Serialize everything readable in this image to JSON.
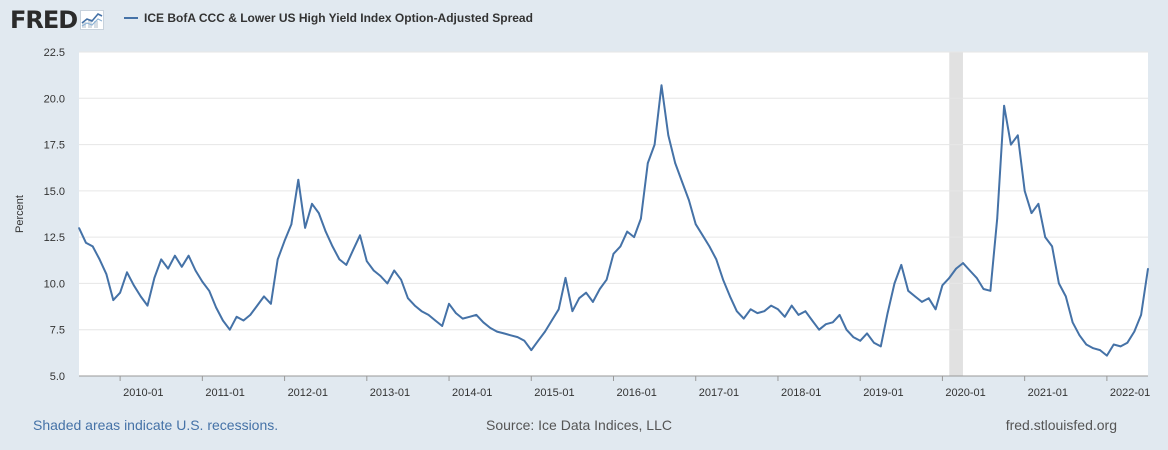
{
  "header": {
    "logo_text": "FRED",
    "legend_label": "ICE BofA CCC & Lower US High Yield Index Option-Adjusted Spread",
    "series_color": "#4572a7"
  },
  "footer": {
    "recession_note": "Shaded areas indicate U.S. recessions.",
    "source": "Source: Ice Data Indices, LLC",
    "site": "fred.stlouisfed.org"
  },
  "chart_data": {
    "type": "line",
    "title": "",
    "xlabel": "",
    "ylabel": "Percent",
    "ylim": [
      5.0,
      22.5
    ],
    "yticks": [
      "5.0",
      "7.5",
      "10.0",
      "12.5",
      "15.0",
      "17.5",
      "20.0",
      "22.5"
    ],
    "xlim": [
      "2009-07",
      "2022-07"
    ],
    "xticks": [
      "2010-01",
      "2011-01",
      "2012-01",
      "2013-01",
      "2014-01",
      "2015-01",
      "2016-01",
      "2017-01",
      "2018-01",
      "2019-01",
      "2020-01",
      "2021-01",
      "2022-01"
    ],
    "grid": true,
    "recessions": [
      {
        "start": "2020-02",
        "end": "2020-04"
      }
    ],
    "series": [
      {
        "name": "ICE BofA CCC & Lower US High Yield Index Option-Adjusted Spread",
        "color": "#4572a7",
        "points": [
          [
            "2009-07",
            13.0
          ],
          [
            "2009-08",
            12.2
          ],
          [
            "2009-09",
            12.0
          ],
          [
            "2009-10",
            11.3
          ],
          [
            "2009-11",
            10.5
          ],
          [
            "2009-12",
            9.1
          ],
          [
            "2010-01",
            9.5
          ],
          [
            "2010-02",
            10.6
          ],
          [
            "2010-03",
            9.9
          ],
          [
            "2010-04",
            9.3
          ],
          [
            "2010-05",
            8.8
          ],
          [
            "2010-06",
            10.3
          ],
          [
            "2010-07",
            11.3
          ],
          [
            "2010-08",
            10.8
          ],
          [
            "2010-09",
            11.5
          ],
          [
            "2010-10",
            10.9
          ],
          [
            "2010-11",
            11.5
          ],
          [
            "2010-12",
            10.7
          ],
          [
            "2011-01",
            10.1
          ],
          [
            "2011-02",
            9.6
          ],
          [
            "2011-03",
            8.7
          ],
          [
            "2011-04",
            8.0
          ],
          [
            "2011-05",
            7.5
          ],
          [
            "2011-06",
            8.2
          ],
          [
            "2011-07",
            8.0
          ],
          [
            "2011-08",
            8.3
          ],
          [
            "2011-09",
            8.8
          ],
          [
            "2011-10",
            9.3
          ],
          [
            "2011-11",
            8.9
          ],
          [
            "2011-12",
            11.3
          ],
          [
            "2012-01",
            12.3
          ],
          [
            "2012-02",
            13.2
          ],
          [
            "2012-03",
            15.6
          ],
          [
            "2012-04",
            13.0
          ],
          [
            "2012-05",
            14.3
          ],
          [
            "2012-06",
            13.8
          ],
          [
            "2012-07",
            12.8
          ],
          [
            "2012-08",
            12.0
          ],
          [
            "2012-09",
            11.3
          ],
          [
            "2012-10",
            11.0
          ],
          [
            "2012-11",
            11.8
          ],
          [
            "2012-12",
            12.6
          ],
          [
            "2013-01",
            11.2
          ],
          [
            "2013-02",
            10.7
          ],
          [
            "2013-03",
            10.4
          ],
          [
            "2013-04",
            10.0
          ],
          [
            "2013-05",
            10.7
          ],
          [
            "2013-06",
            10.2
          ],
          [
            "2013-07",
            9.2
          ],
          [
            "2013-08",
            8.8
          ],
          [
            "2013-09",
            8.5
          ],
          [
            "2013-10",
            8.3
          ],
          [
            "2013-11",
            8.0
          ],
          [
            "2013-12",
            7.7
          ],
          [
            "2014-01",
            8.9
          ],
          [
            "2014-02",
            8.4
          ],
          [
            "2014-03",
            8.1
          ],
          [
            "2014-04",
            8.2
          ],
          [
            "2014-05",
            8.3
          ],
          [
            "2014-06",
            7.9
          ],
          [
            "2014-07",
            7.6
          ],
          [
            "2014-08",
            7.4
          ],
          [
            "2014-09",
            7.3
          ],
          [
            "2014-10",
            7.2
          ],
          [
            "2014-11",
            7.1
          ],
          [
            "2014-12",
            6.9
          ],
          [
            "2015-01",
            6.4
          ],
          [
            "2015-02",
            6.9
          ],
          [
            "2015-03",
            7.4
          ],
          [
            "2015-04",
            8.0
          ],
          [
            "2015-05",
            8.6
          ],
          [
            "2015-06",
            10.3
          ],
          [
            "2015-07",
            8.5
          ],
          [
            "2015-08",
            9.2
          ],
          [
            "2015-09",
            9.5
          ],
          [
            "2015-10",
            9.0
          ],
          [
            "2015-11",
            9.7
          ],
          [
            "2015-12",
            10.2
          ],
          [
            "2016-01",
            11.6
          ],
          [
            "2016-02",
            12.0
          ],
          [
            "2016-03",
            12.8
          ],
          [
            "2016-04",
            12.5
          ],
          [
            "2016-05",
            13.5
          ],
          [
            "2016-06",
            16.5
          ],
          [
            "2016-07",
            17.5
          ],
          [
            "2016-08",
            20.7
          ],
          [
            "2016-09",
            18.0
          ],
          [
            "2016-10",
            16.5
          ],
          [
            "2016-11",
            15.5
          ],
          [
            "2016-12",
            14.5
          ],
          [
            "2017-01",
            13.2
          ],
          [
            "2017-02",
            12.6
          ],
          [
            "2017-03",
            12.0
          ],
          [
            "2017-04",
            11.3
          ],
          [
            "2017-05",
            10.2
          ],
          [
            "2017-06",
            9.3
          ],
          [
            "2017-07",
            8.5
          ],
          [
            "2017-08",
            8.1
          ],
          [
            "2017-09",
            8.6
          ],
          [
            "2017-10",
            8.4
          ],
          [
            "2017-11",
            8.5
          ],
          [
            "2017-12",
            8.8
          ],
          [
            "2018-01",
            8.6
          ],
          [
            "2018-02",
            8.2
          ],
          [
            "2018-03",
            8.8
          ],
          [
            "2018-04",
            8.3
          ],
          [
            "2018-05",
            8.5
          ],
          [
            "2018-06",
            8.0
          ],
          [
            "2018-07",
            7.5
          ],
          [
            "2018-08",
            7.8
          ],
          [
            "2018-09",
            7.9
          ],
          [
            "2018-10",
            8.3
          ],
          [
            "2018-11",
            7.5
          ],
          [
            "2018-12",
            7.1
          ],
          [
            "2019-01",
            6.9
          ],
          [
            "2019-02",
            7.3
          ],
          [
            "2019-03",
            6.8
          ],
          [
            "2019-04",
            6.6
          ],
          [
            "2019-05",
            8.4
          ],
          [
            "2019-06",
            10.0
          ],
          [
            "2019-07",
            11.0
          ],
          [
            "2019-08",
            9.6
          ],
          [
            "2019-09",
            9.3
          ],
          [
            "2019-10",
            9.0
          ],
          [
            "2019-11",
            9.2
          ],
          [
            "2019-12",
            8.6
          ],
          [
            "2020-01",
            9.9
          ],
          [
            "2020-02",
            10.3
          ],
          [
            "2020-03",
            10.8
          ],
          [
            "2020-04",
            11.1
          ],
          [
            "2020-05",
            10.7
          ],
          [
            "2020-06",
            10.3
          ],
          [
            "2020-07",
            9.7
          ],
          [
            "2020-08",
            9.6
          ],
          [
            "2020-09",
            13.5
          ],
          [
            "2020-10",
            19.6
          ],
          [
            "2020-11",
            17.5
          ],
          [
            "2020-12",
            18.0
          ],
          [
            "2021-01",
            15.0
          ],
          [
            "2021-02",
            13.8
          ],
          [
            "2021-03",
            14.3
          ],
          [
            "2021-04",
            12.5
          ],
          [
            "2021-05",
            12.0
          ],
          [
            "2021-06",
            10.0
          ],
          [
            "2021-07",
            9.3
          ],
          [
            "2021-08",
            7.9
          ],
          [
            "2021-09",
            7.2
          ],
          [
            "2021-10",
            6.7
          ],
          [
            "2021-11",
            6.5
          ],
          [
            "2021-12",
            6.4
          ],
          [
            "2022-01",
            6.1
          ],
          [
            "2022-02",
            6.7
          ],
          [
            "2022-03",
            6.6
          ],
          [
            "2022-04",
            6.8
          ],
          [
            "2022-05",
            7.4
          ],
          [
            "2022-06",
            8.3
          ],
          [
            "2022-07",
            10.8
          ]
        ]
      }
    ]
  }
}
